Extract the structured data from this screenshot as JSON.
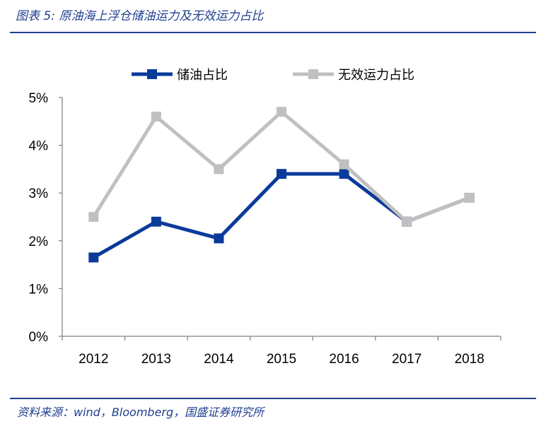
{
  "header": {
    "title": "图表 5:  原油海上浮仓储油运力及无效运力占比"
  },
  "footer": {
    "source": "资料来源：wind，Bloomberg，国盛证券研究所"
  },
  "chart_data": {
    "type": "line",
    "x": [
      "2012",
      "2013",
      "2014",
      "2015",
      "2016",
      "2017",
      "2018"
    ],
    "series": [
      {
        "name": "储油占比",
        "color": "#0a3a9a",
        "values": [
          1.65,
          2.4,
          2.05,
          3.4,
          3.4,
          2.4,
          2.9
        ]
      },
      {
        "name": "无效运力占比",
        "color": "#c0c0c0",
        "values": [
          2.5,
          4.6,
          3.5,
          4.7,
          3.6,
          2.4,
          2.9
        ]
      }
    ],
    "yticks": [
      "0%",
      "1%",
      "2%",
      "3%",
      "4%",
      "5%"
    ],
    "ylim": [
      0,
      5
    ],
    "legend_position": "top",
    "grid": false
  }
}
